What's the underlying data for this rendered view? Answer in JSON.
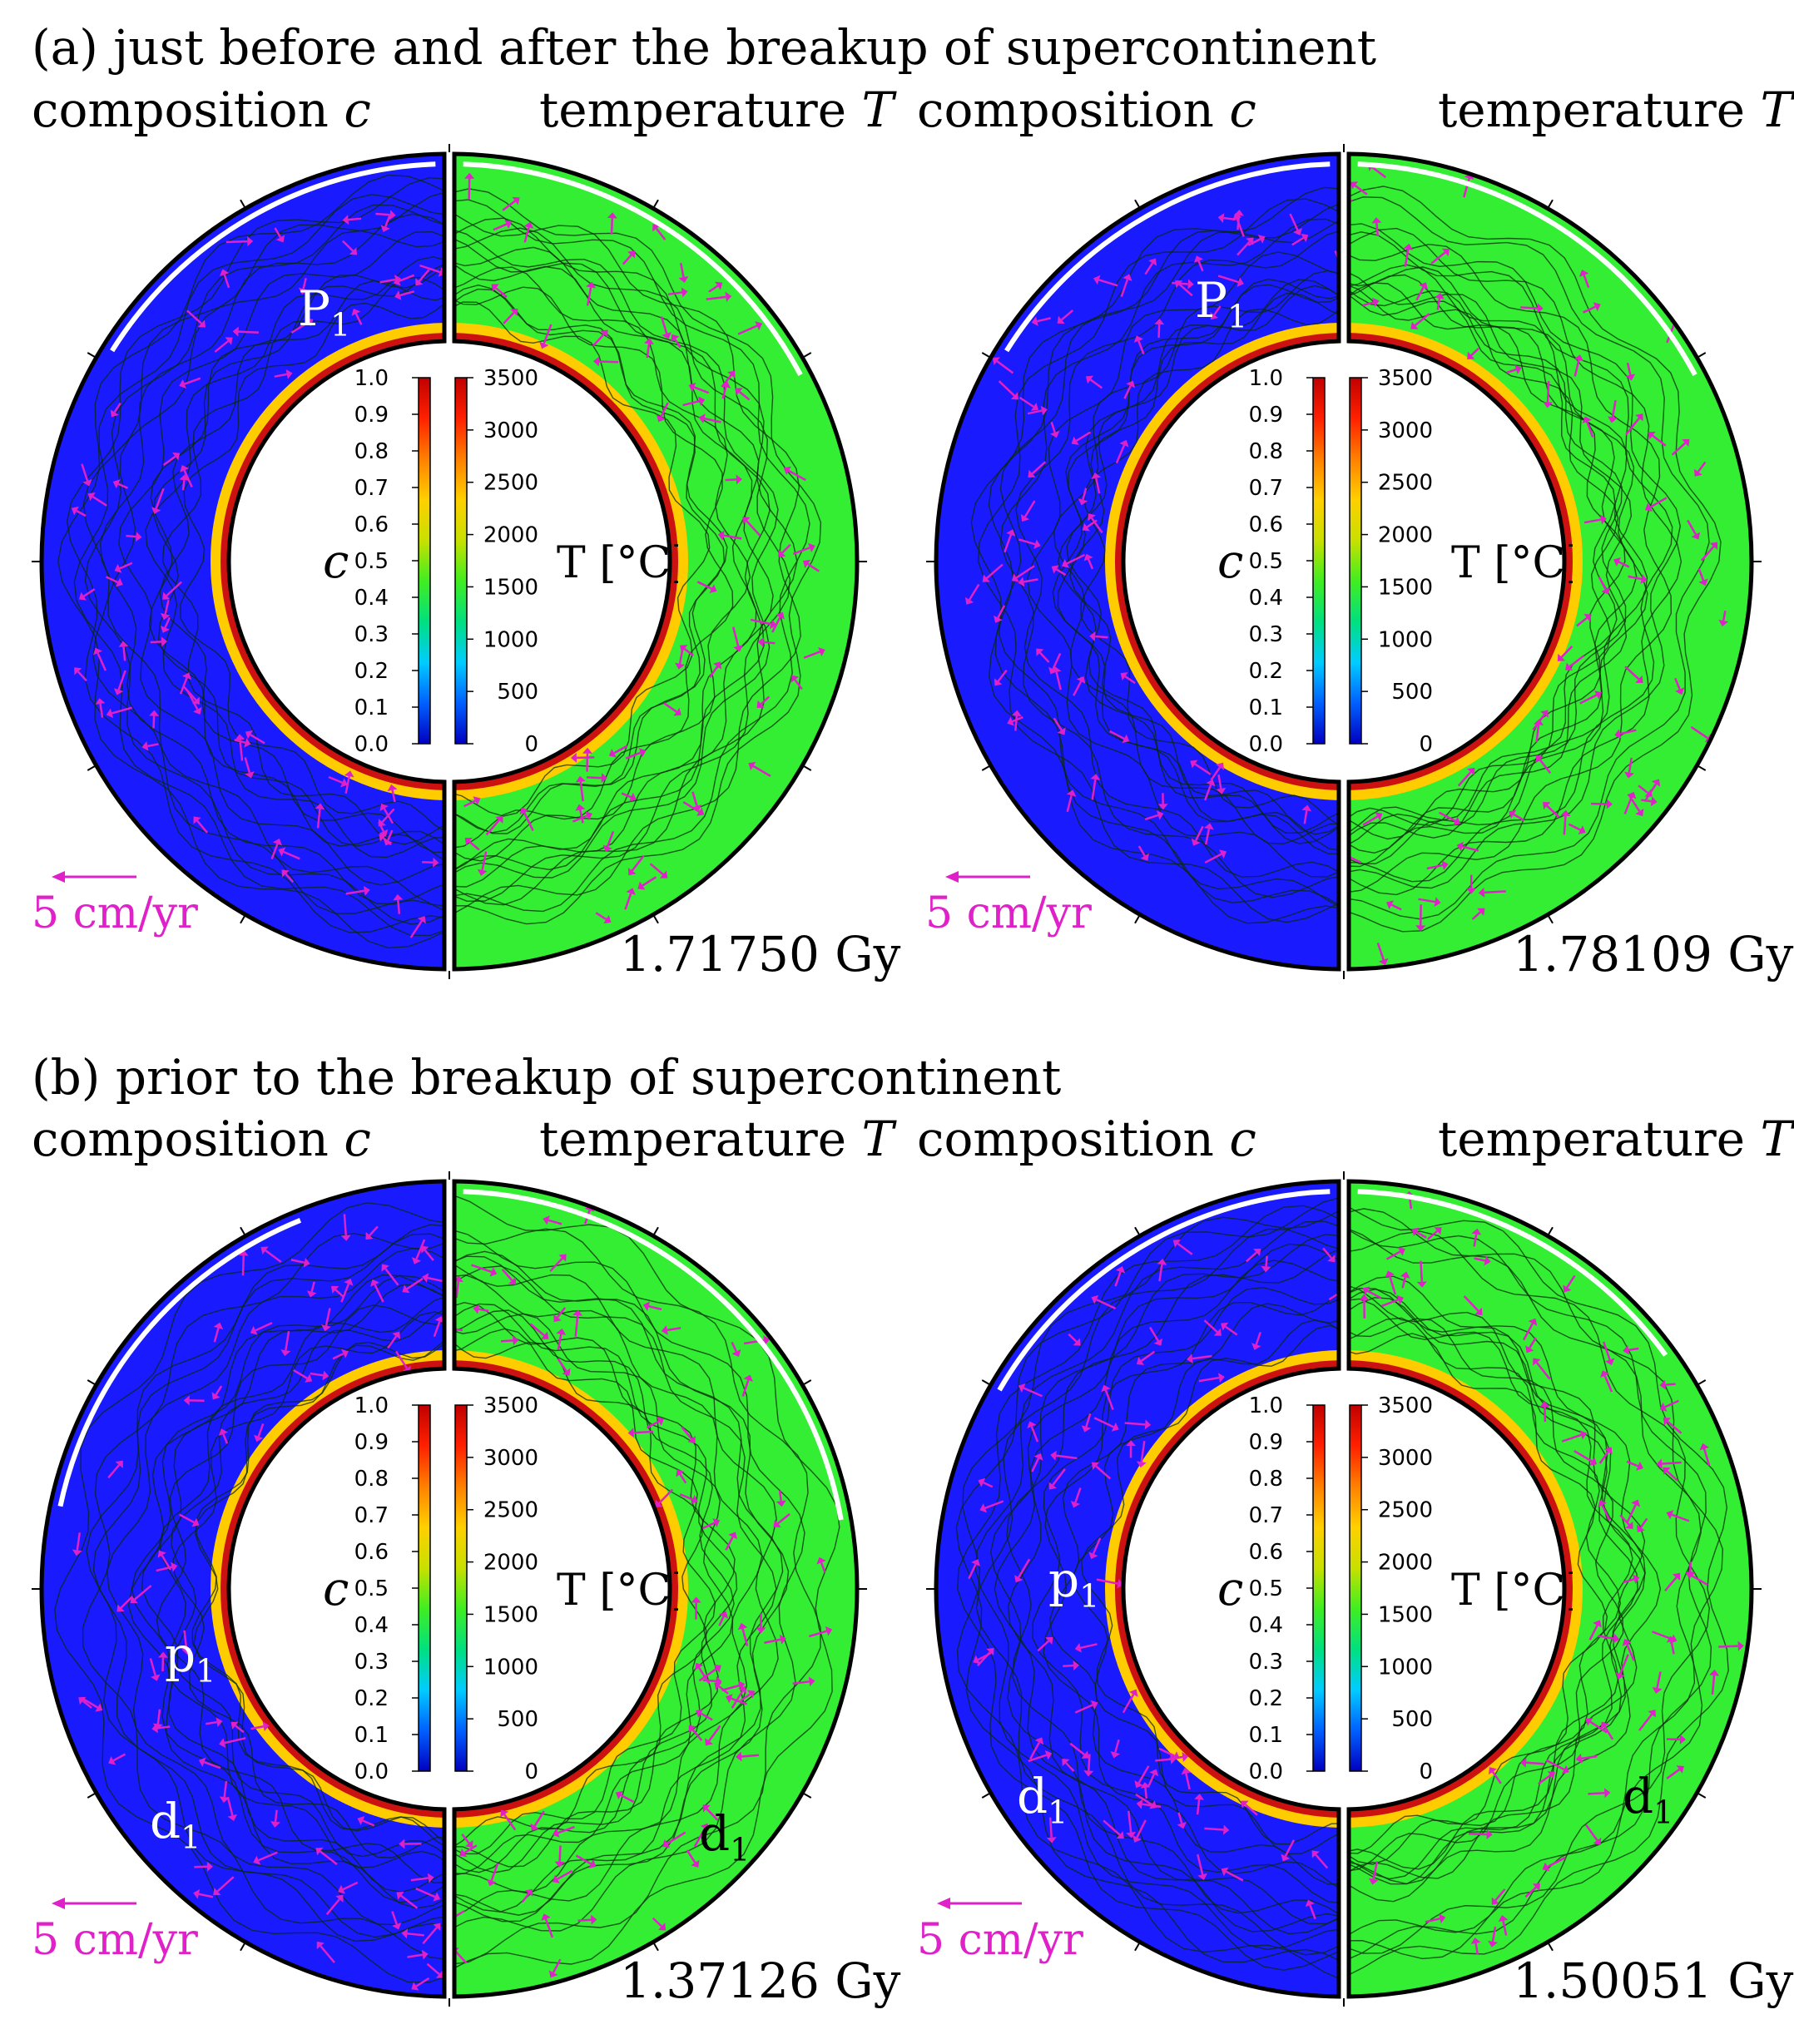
{
  "panel_a": {
    "title": "(a) just before and after the breakup of supercontinent",
    "left": {
      "comp_label": "composition",
      "comp_var": "c",
      "temp_label": "temperature",
      "temp_var": "T",
      "time": "1.71750 Gy",
      "velocity": "5 cm/yr",
      "plume_main": "P",
      "plume_sub": "1"
    },
    "right": {
      "comp_label": "composition",
      "comp_var": "c",
      "temp_label": "temperature",
      "temp_var": "T",
      "time": "1.78109 Gy",
      "velocity": "5 cm/yr",
      "plume_main": "P",
      "plume_sub": "1"
    }
  },
  "panel_b": {
    "title": "(b) prior to the breakup of supercontinent",
    "left": {
      "comp_label": "composition",
      "comp_var": "c",
      "temp_label": "temperature",
      "temp_var": "T",
      "time": "1.37126 Gy",
      "velocity": "5 cm/yr",
      "plume_main": "p",
      "plume_sub": "1",
      "down_main": "d",
      "down_sub": "1"
    },
    "right": {
      "comp_label": "composition",
      "comp_var": "c",
      "temp_label": "temperature",
      "temp_var": "T",
      "time": "1.50051 Gy",
      "velocity": "5 cm/yr",
      "plume_main": "p",
      "plume_sub": "1",
      "down_main": "d",
      "down_sub": "1"
    }
  },
  "colorbar": {
    "c_label": "c",
    "t_label": "T [°C]",
    "c_ticks": [
      "1.0",
      "0.9",
      "0.8",
      "0.7",
      "0.6",
      "0.5",
      "0.4",
      "0.3",
      "0.2",
      "0.1",
      "0.0"
    ],
    "t_ticks": [
      "3500",
      "3000",
      "2500",
      "2000",
      "1500",
      "1000",
      "500",
      "0"
    ]
  },
  "colors": {
    "composition_field": "#1a1aff",
    "temperature_field": "#33ee33",
    "arrows": "#e020c8",
    "core_ring": "#cc1111"
  }
}
